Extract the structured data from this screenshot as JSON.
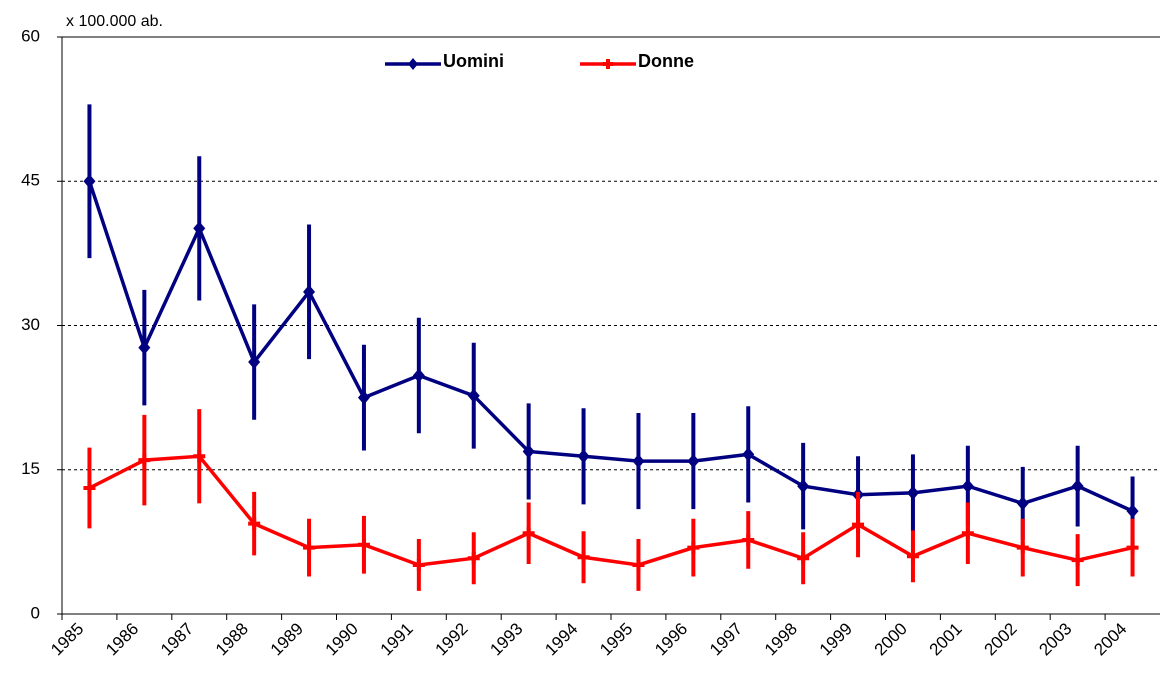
{
  "chart_data": {
    "type": "line",
    "y_label": "x 100.000 ab.",
    "categories": [
      "1985",
      "1986",
      "1987",
      "1988",
      "1989",
      "1990",
      "1991",
      "1992",
      "1993",
      "1994",
      "1995",
      "1996",
      "1997",
      "1998",
      "1999",
      "2000",
      "2001",
      "2002",
      "2003",
      "2004"
    ],
    "series": [
      {
        "name": "Uomini",
        "color": "#000080",
        "marker": "diamond",
        "values": [
          45,
          27.7,
          40.1,
          26.2,
          33.5,
          22.5,
          24.8,
          22.7,
          16.9,
          16.4,
          15.9,
          15.9,
          16.6,
          13.3,
          12.4,
          12.6,
          13.3,
          11.5,
          13.3,
          10.7
        ],
        "errors": [
          8,
          6,
          7.5,
          6,
          7,
          5.5,
          6,
          5.5,
          5,
          5,
          5,
          5,
          5,
          4.5,
          4,
          4,
          4.2,
          3.8,
          4.2,
          3.6
        ]
      },
      {
        "name": "Donne",
        "color": "#ff0000",
        "marker": "plus",
        "values": [
          13.1,
          16,
          16.4,
          9.4,
          6.9,
          7.2,
          5.1,
          5.8,
          8.4,
          5.9,
          5.1,
          6.9,
          7.7,
          5.8,
          9.3,
          6,
          8.4,
          6.9,
          5.6,
          6.9
        ],
        "errors": [
          4.2,
          4.7,
          4.9,
          3.3,
          3,
          3,
          2.7,
          2.7,
          3.2,
          2.7,
          2.7,
          3,
          3,
          2.7,
          3.4,
          2.7,
          3.2,
          3,
          2.7,
          3
        ]
      }
    ],
    "ylim": [
      0,
      60
    ],
    "yticks": [
      0,
      15,
      30,
      45,
      60
    ],
    "grid": true
  }
}
